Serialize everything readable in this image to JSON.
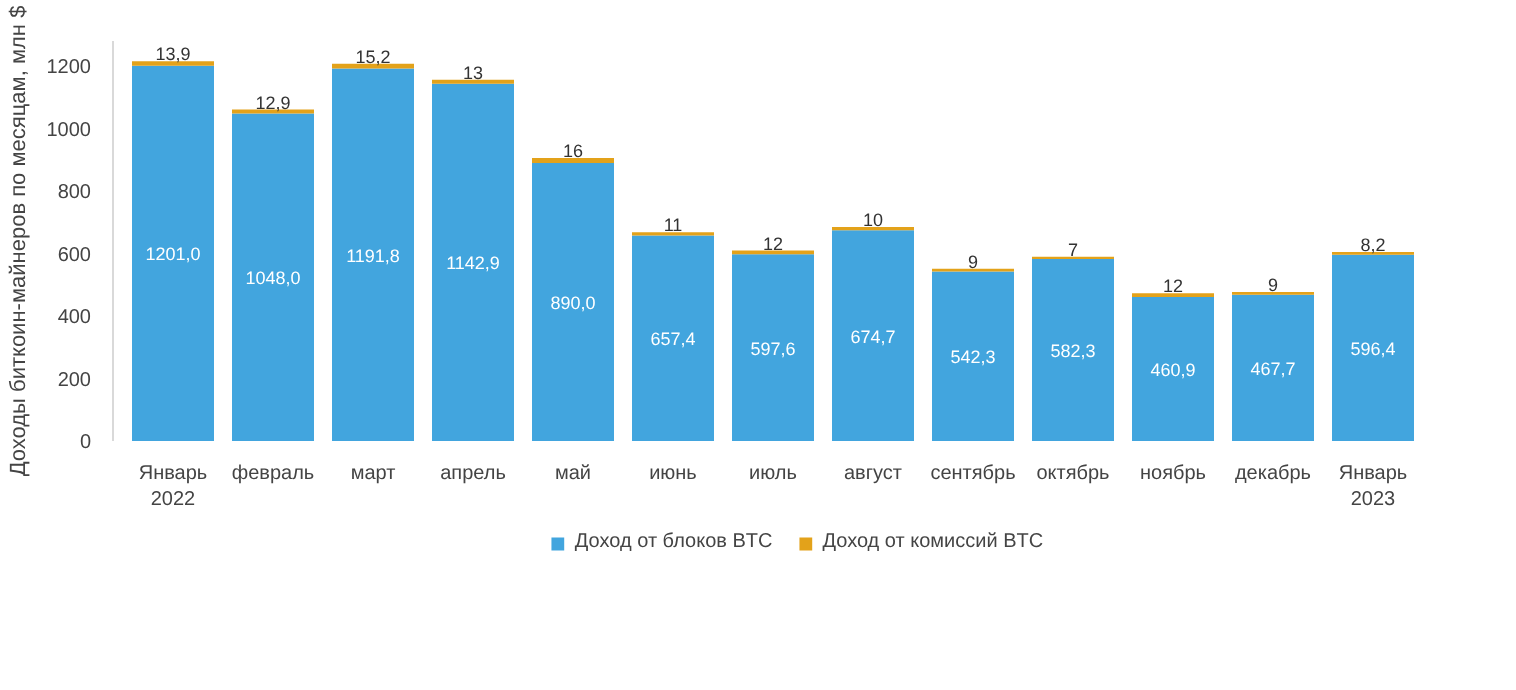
{
  "chart_data": {
    "type": "bar",
    "stacked": true,
    "ylabel": "Доходы биткоин-майнеров по месяцам, млн $",
    "categories": [
      "Январь\n2022",
      "февраль",
      "март",
      "апрель",
      "май",
      "июнь",
      "июль",
      "август",
      "сентябрь",
      "октябрь",
      "ноябрь",
      "декабрь",
      "Январь\n2023"
    ],
    "series": [
      {
        "name": "Доход от блоков BTC",
        "color": "#42a5de",
        "values": [
          1201.0,
          1048.0,
          1191.8,
          1142.9,
          890.0,
          657.4,
          597.6,
          674.7,
          542.3,
          582.3,
          460.9,
          467.7,
          596.4
        ],
        "value_labels": [
          "1201,0",
          "1048,0",
          "1191,8",
          "1142,9",
          "890,0",
          "657,4",
          "597,6",
          "674,7",
          "542,3",
          "582,3",
          "460,9",
          "467,7",
          "596,4"
        ]
      },
      {
        "name": "Доход от комиссий BTC",
        "color": "#e3a21a",
        "values": [
          13.9,
          12.9,
          15.2,
          13,
          16,
          11,
          12,
          10,
          9,
          7,
          12,
          9,
          8.2
        ],
        "value_labels": [
          "13,9",
          "12,9",
          "15,2",
          "13",
          "16",
          "11",
          "12",
          "10",
          "9",
          "7",
          "12",
          "9",
          "8,2"
        ]
      }
    ],
    "ylim": [
      0,
      1280
    ],
    "yticks": [
      0,
      200,
      400,
      600,
      800,
      1000,
      1200
    ],
    "grid": false,
    "legend": "bottom"
  }
}
